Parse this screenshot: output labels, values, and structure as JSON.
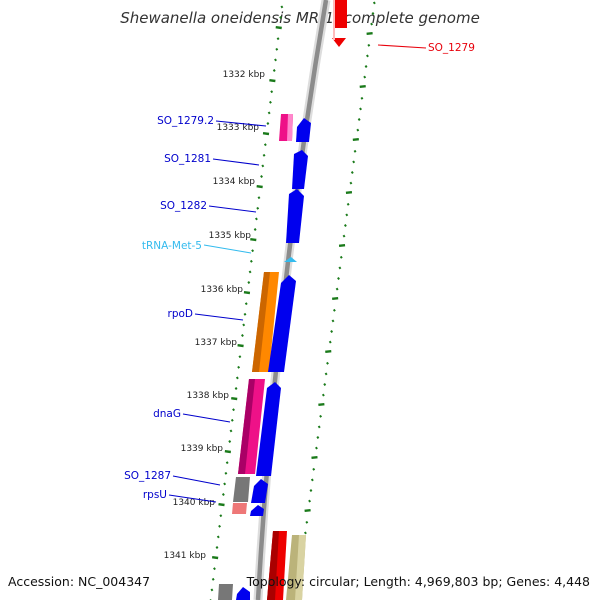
{
  "title": "Shewanella oneidensis MR-1, complete genome",
  "footer": {
    "accession": "Accession: NC_004347",
    "topology": "Topology: circular; Length: 4,969,803 bp; Genes: 4,448"
  },
  "kbp_ticks": [
    "1332 kbp",
    "1333 kbp",
    "1334 kbp",
    "1335 kbp",
    "1336 kbp",
    "1337 kbp",
    "1338 kbp",
    "1339 kbp",
    "1340 kbp",
    "1341 kbp"
  ],
  "gene_labels": [
    {
      "text": "SO_1279",
      "color": "#e8000b",
      "side": "right"
    },
    {
      "text": "SO_1279.2",
      "color": "#0000cc",
      "side": "left"
    },
    {
      "text": "SO_1281",
      "color": "#0000cc",
      "side": "left"
    },
    {
      "text": "SO_1282",
      "color": "#0000cc",
      "side": "left"
    },
    {
      "text": "tRNA-Met-5",
      "color": "#33bbee",
      "side": "left"
    },
    {
      "text": "rpoD",
      "color": "#0000cc",
      "side": "left"
    },
    {
      "text": "dnaG",
      "color": "#0000cc",
      "side": "left"
    },
    {
      "text": "SO_1287",
      "color": "#0000cc",
      "side": "left"
    },
    {
      "text": "rpsU",
      "color": "#0000cc",
      "side": "left"
    }
  ],
  "colors": {
    "backbone": "#8c8c8c",
    "cds": "#0000ee",
    "trna": "#33bbee",
    "tick_marks": "#1a7a1a",
    "cog_pink": "#ee1188",
    "cog_orange": "#ff8800",
    "cog_gray": "#777777",
    "cog_red": "#ee0000",
    "cog_khaki": "#bbb37a",
    "cog_salmon": "#ee7777"
  }
}
